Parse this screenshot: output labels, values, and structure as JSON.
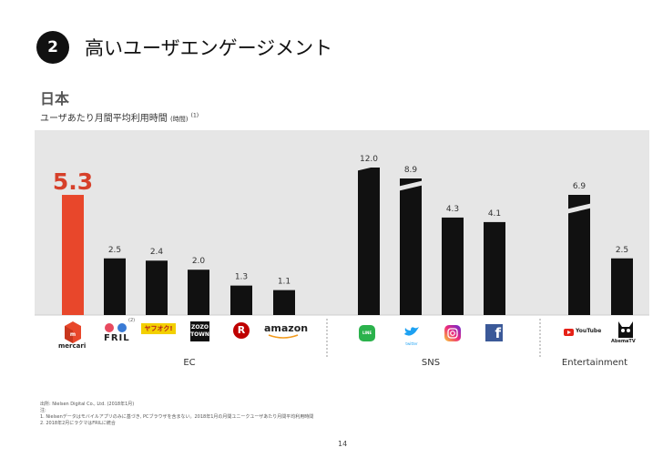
{
  "header": {
    "badge_number": "2",
    "title": "高いユーザエンゲージメント"
  },
  "section_label": "日本",
  "subtitle_main": "ユーザあたり月間平均利用時間 ",
  "subtitle_unit": "(時間)",
  "subtitle_note": "(1)",
  "chart_data": {
    "type": "bar",
    "categories": [
      "mercari",
      "FRIL",
      "ヤフオク!",
      "ZOZOTOWN",
      "楽天",
      "amazon",
      "LINE",
      "twitter",
      "Instagram",
      "Facebook",
      "YouTube",
      "AbemaTV"
    ],
    "values": [
      5.3,
      2.5,
      2.4,
      2.0,
      1.3,
      1.1,
      12.0,
      8.9,
      4.3,
      4.1,
      6.9,
      2.5
    ],
    "value_labels": [
      "5.3",
      "2.5",
      "2.4",
      "2.0",
      "1.3",
      "1.1",
      "12.0",
      "8.9",
      "4.3",
      "4.1",
      "6.9",
      "2.5"
    ],
    "broken_axis_bars": [
      "LINE",
      "twitter",
      "YouTube"
    ],
    "highlight_category": "mercari",
    "groups": [
      {
        "label": "EC",
        "categories": [
          "mercari",
          "FRIL",
          "ヤフオク!",
          "ZOZOTOWN",
          "楽天",
          "amazon"
        ]
      },
      {
        "label": "SNS",
        "categories": [
          "LINE",
          "twitter",
          "Instagram",
          "Facebook"
        ]
      },
      {
        "label": "Entertainment",
        "categories": [
          "YouTube",
          "AbemaTV"
        ]
      }
    ],
    "colors": {
      "highlight": "#e8472b",
      "bar": "#111111",
      "background": "#e6e6e6",
      "highlight_label": "#d6402a"
    },
    "grid": false,
    "legend": "none"
  },
  "logos": {
    "mercari": "mercari",
    "fril": "FRIL",
    "fril_note": "(2)",
    "yahoo": "ヤフオク!",
    "zozo_line1": "ZOZO",
    "zozo_line2": "TOWN",
    "rakuten": "R",
    "amazon": "amazon",
    "line": "LINE",
    "twitter": "twitter",
    "youtube": "YouTube",
    "abema": "AbemaTV"
  },
  "footnotes": [
    "出所: Nielsen Digital Co., Ltd. (2018年1月)",
    "注:",
    "1. Nielsenデータはモバイルアプリのみに基づき, PCブラウザを含まない。2018年1月の月間ユニークユーザあたり月間平均利用時間",
    "2. 2018年2月にラクマはFRILに統合"
  ],
  "page_number": "14"
}
